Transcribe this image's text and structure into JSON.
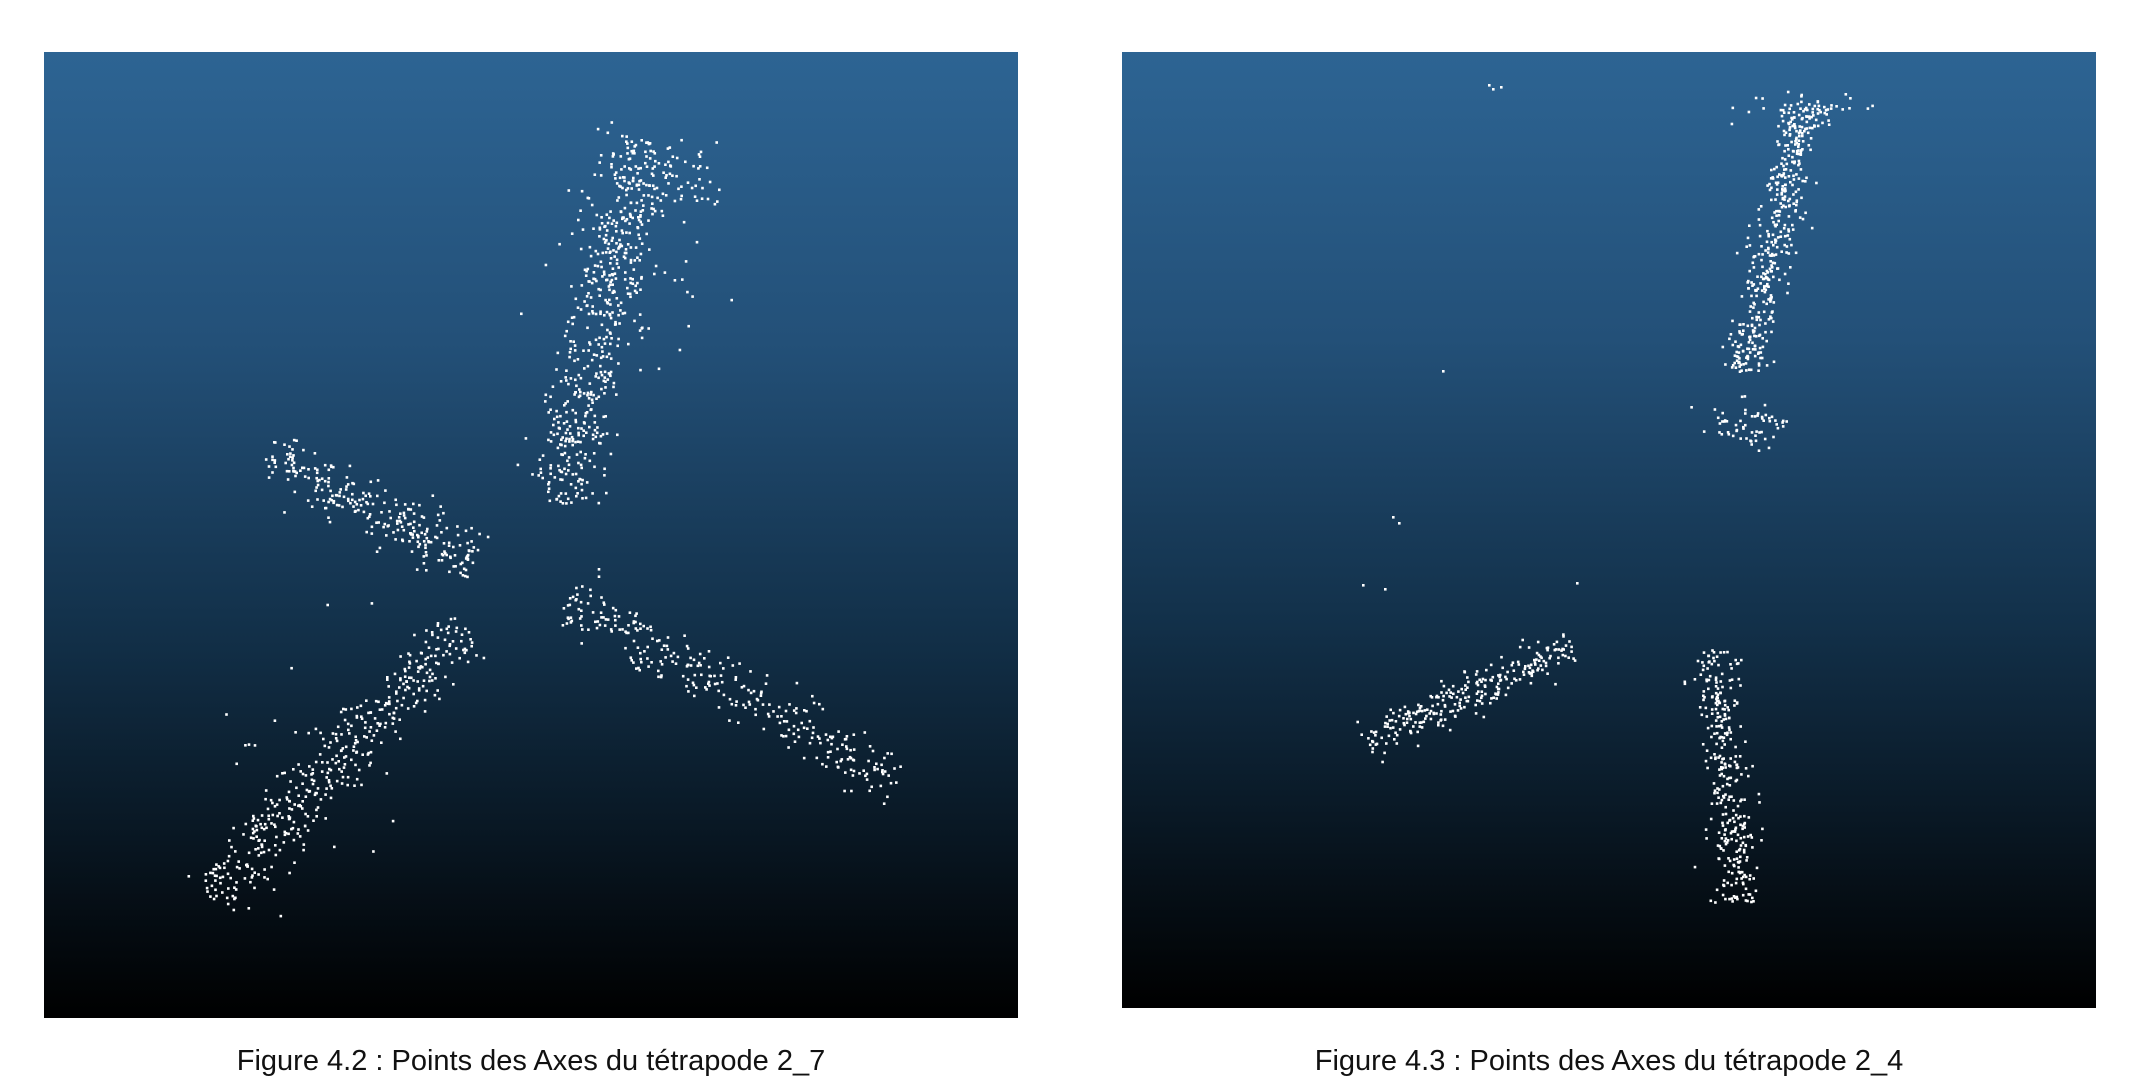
{
  "figures": [
    {
      "caption": "Figure 4.2 : Points des Axes du tétrapode 2_7",
      "background_top": "#2d6493",
      "background_bottom": "#000000",
      "point_color": "#ffffff"
    },
    {
      "caption": "Figure 4.3 : Points des Axes du tétrapode 2_4",
      "background_top": "#2d6493",
      "background_bottom": "#000000",
      "point_color": "#ffffff"
    }
  ]
}
